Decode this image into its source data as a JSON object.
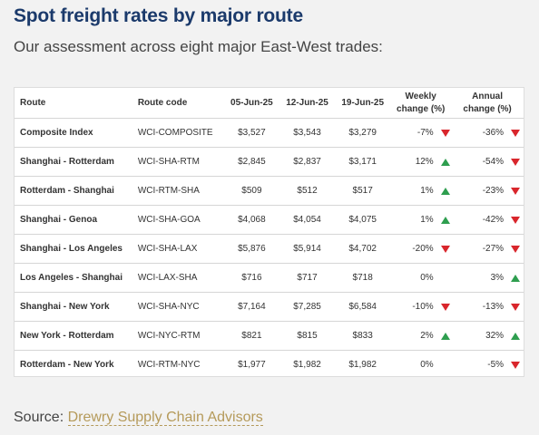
{
  "title": "Spot freight rates by major route",
  "subtitle": "Our assessment across eight major East-West trades:",
  "table": {
    "headers": {
      "route": "Route",
      "code": "Route code",
      "d1": "05-Jun-25",
      "d2": "12-Jun-25",
      "d3": "19-Jun-25",
      "weekly_l1": "Weekly",
      "weekly_l2": "change (%)",
      "annual_l1": "Annual",
      "annual_l2": "change (%)"
    },
    "rows": [
      {
        "route": "Composite Index",
        "code": "WCI-COMPOSITE",
        "d1": "$3,527",
        "d2": "$3,543",
        "d3": "$3,279",
        "weekly": "-7%",
        "weekly_dir": "down",
        "annual": "-36%",
        "annual_dir": "down"
      },
      {
        "route": "Shanghai - Rotterdam",
        "code": "WCI-SHA-RTM",
        "d1": "$2,845",
        "d2": "$2,837",
        "d3": "$3,171",
        "weekly": "12%",
        "weekly_dir": "up",
        "annual": "-54%",
        "annual_dir": "down"
      },
      {
        "route": "Rotterdam - Shanghai",
        "code": "WCI-RTM-SHA",
        "d1": "$509",
        "d2": "$512",
        "d3": "$517",
        "weekly": "1%",
        "weekly_dir": "up",
        "annual": "-23%",
        "annual_dir": "down"
      },
      {
        "route": "Shanghai - Genoa",
        "code": "WCI-SHA-GOA",
        "d1": "$4,068",
        "d2": "$4,054",
        "d3": "$4,075",
        "weekly": "1%",
        "weekly_dir": "up",
        "annual": "-42%",
        "annual_dir": "down"
      },
      {
        "route": "Shanghai - Los Angeles",
        "code": "WCI-SHA-LAX",
        "d1": "$5,876",
        "d2": "$5,914",
        "d3": "$4,702",
        "weekly": "-20%",
        "weekly_dir": "down",
        "annual": "-27%",
        "annual_dir": "down"
      },
      {
        "route": "Los Angeles - Shanghai",
        "code": "WCI-LAX-SHA",
        "d1": "$716",
        "d2": "$717",
        "d3": "$718",
        "weekly": "0%",
        "weekly_dir": "none",
        "annual": "3%",
        "annual_dir": "up"
      },
      {
        "route": "Shanghai - New York",
        "code": "WCI-SHA-NYC",
        "d1": "$7,164",
        "d2": "$7,285",
        "d3": "$6,584",
        "weekly": "-10%",
        "weekly_dir": "down",
        "annual": "-13%",
        "annual_dir": "down"
      },
      {
        "route": "New York - Rotterdam",
        "code": "WCI-NYC-RTM",
        "d1": "$821",
        "d2": "$815",
        "d3": "$833",
        "weekly": "2%",
        "weekly_dir": "up",
        "annual": "32%",
        "annual_dir": "up"
      },
      {
        "route": "Rotterdam - New York",
        "code": "WCI-RTM-NYC",
        "d1": "$1,977",
        "d2": "$1,982",
        "d3": "$1,982",
        "weekly": "0%",
        "weekly_dir": "none",
        "annual": "-5%",
        "annual_dir": "down"
      }
    ]
  },
  "source": {
    "prefix": "Source:",
    "link_text": "Drewry Supply Chain Advisors"
  },
  "colors": {
    "title": "#1b3a6b",
    "down_arrow": "#d9262c",
    "up_arrow": "#2e9e4f",
    "link": "#b59a5a"
  },
  "icons": {
    "down": "triangle-down-icon",
    "up": "triangle-up-icon"
  }
}
